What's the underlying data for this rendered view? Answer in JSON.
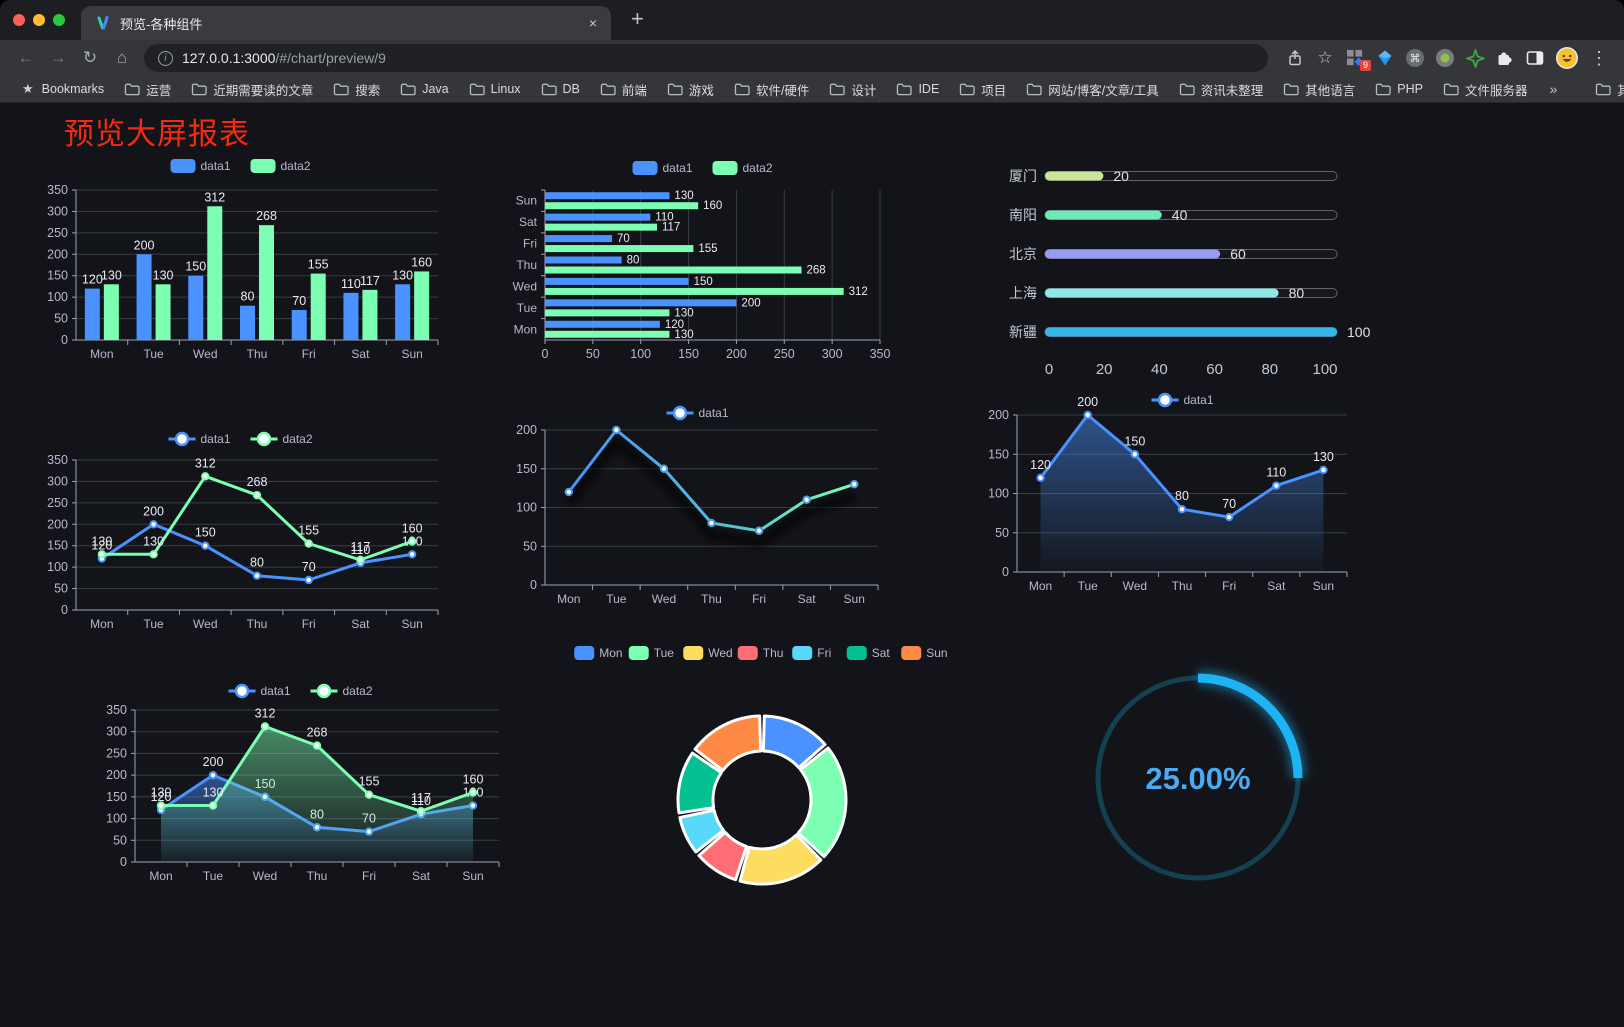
{
  "browser": {
    "tab_title": "预览-各种组件",
    "url_host": "127.0.0.1:3000",
    "url_path": "/#/chart/preview/9",
    "badge": "9",
    "bookmarks_label": "Bookmarks",
    "bookmarks": [
      "运营",
      "近期需要读的文章",
      "搜索",
      "Java",
      "Linux",
      "DB",
      "前端",
      "游戏",
      "软件/硬件",
      "设计",
      "IDE",
      "项目",
      "网站/博客/文章/工具",
      "资讯未整理",
      "其他语言",
      "PHP",
      "文件服务器"
    ],
    "overflow": "»",
    "other_bookmarks": "其他书签",
    "glyphs": {
      "back": "←",
      "forward": "→",
      "reload": "↻",
      "home": "⌂",
      "info": "i",
      "close": "×",
      "new_tab": "+",
      "star": "☆",
      "kebab": "⋮",
      "bookmark_star": "★",
      "cmd": "⌘"
    }
  },
  "page": {
    "title": "预览大屏报表",
    "title_color": "#f42a12",
    "background": "#131419"
  },
  "palette": [
    "#4992ff",
    "#7cffb2",
    "#fddd60",
    "#ff6e76",
    "#58d9f9",
    "#05c091",
    "#ff8a45"
  ],
  "chart_data": [
    {
      "id": "bar-vertical",
      "type": "bar",
      "categories": [
        "Mon",
        "Tue",
        "Wed",
        "Thu",
        "Fri",
        "Sat",
        "Sun"
      ],
      "series": [
        {
          "name": "data1",
          "color": "#4992ff",
          "values": [
            120,
            200,
            150,
            80,
            70,
            110,
            130
          ]
        },
        {
          "name": "data2",
          "color": "#7cffb2",
          "values": [
            130,
            130,
            312,
            268,
            155,
            117,
            160
          ]
        }
      ],
      "ylim": [
        0,
        350
      ],
      "ystep": 50,
      "legend_position": "top",
      "grid": true,
      "value_labels": true
    },
    {
      "id": "bar-horizontal",
      "type": "bar-horizontal",
      "categories": [
        "Mon",
        "Tue",
        "Wed",
        "Thu",
        "Fri",
        "Sat",
        "Sun"
      ],
      "series": [
        {
          "name": "data1",
          "color": "#4992ff",
          "values": [
            120,
            200,
            150,
            80,
            70,
            110,
            130
          ]
        },
        {
          "name": "data2",
          "color": "#7cffb2",
          "values": [
            130,
            130,
            312,
            268,
            155,
            117,
            160
          ]
        }
      ],
      "xlim": [
        0,
        350
      ],
      "xstep": 50,
      "legend_position": "top",
      "grid": true,
      "value_labels": true
    },
    {
      "id": "progress",
      "type": "bar-progress",
      "items": [
        {
          "label": "厦门",
          "value": 20,
          "color": "#c9e69b"
        },
        {
          "label": "南阳",
          "value": 40,
          "color": "#6fe7b8"
        },
        {
          "label": "北京",
          "value": 60,
          "color": "#979cf1"
        },
        {
          "label": "上海",
          "value": 80,
          "color": "#8ee8e5"
        },
        {
          "label": "新疆",
          "value": 100,
          "color": "#37b6e9"
        }
      ],
      "xticks": [
        0,
        20,
        40,
        60,
        80,
        100
      ],
      "xlim": [
        0,
        100
      ]
    },
    {
      "id": "line-two",
      "type": "line",
      "categories": [
        "Mon",
        "Tue",
        "Wed",
        "Thu",
        "Fri",
        "Sat",
        "Sun"
      ],
      "series": [
        {
          "name": "data1",
          "color": "#4992ff",
          "values": [
            120,
            200,
            150,
            80,
            70,
            110,
            130
          ]
        },
        {
          "name": "data2",
          "color": "#7cffb2",
          "values": [
            130,
            130,
            312,
            268,
            155,
            117,
            160
          ]
        }
      ],
      "ylim": [
        0,
        350
      ],
      "ystep": 50,
      "legend_position": "top",
      "value_labels": true
    },
    {
      "id": "line-gradient",
      "type": "line",
      "categories": [
        "Mon",
        "Tue",
        "Wed",
        "Thu",
        "Fri",
        "Sat",
        "Sun"
      ],
      "series": [
        {
          "name": "data1",
          "color": "#4992ff",
          "gradient": [
            "#4992ff",
            "#7cffb2"
          ],
          "values": [
            120,
            200,
            150,
            80,
            70,
            110,
            130
          ],
          "shadow": true
        }
      ],
      "ylim": [
        0,
        200
      ],
      "ystep": 50,
      "legend_position": "top",
      "value_labels": false
    },
    {
      "id": "area-single",
      "type": "area",
      "categories": [
        "Mon",
        "Tue",
        "Wed",
        "Thu",
        "Fri",
        "Sat",
        "Sun"
      ],
      "series": [
        {
          "name": "data1",
          "color": "#4992ff",
          "values": [
            120,
            200,
            150,
            80,
            70,
            110,
            130
          ],
          "area": true
        }
      ],
      "ylim": [
        0,
        200
      ],
      "ystep": 50,
      "legend_position": "top",
      "value_labels": true
    },
    {
      "id": "line-area-two",
      "type": "area",
      "categories": [
        "Mon",
        "Tue",
        "Wed",
        "Thu",
        "Fri",
        "Sat",
        "Sun"
      ],
      "series": [
        {
          "name": "data1",
          "color": "#4992ff",
          "values": [
            120,
            200,
            150,
            80,
            70,
            110,
            130
          ],
          "area": true
        },
        {
          "name": "data2",
          "color": "#7cffb2",
          "values": [
            130,
            130,
            312,
            268,
            155,
            117,
            160
          ],
          "area": true
        }
      ],
      "ylim": [
        0,
        350
      ],
      "ystep": 50,
      "legend_position": "top",
      "value_labels": true
    },
    {
      "id": "pie-donut",
      "type": "pie",
      "categories": [
        "Mon",
        "Tue",
        "Wed",
        "Thu",
        "Fri",
        "Sat",
        "Sun"
      ],
      "values": [
        120,
        200,
        150,
        80,
        70,
        110,
        130
      ],
      "colors": [
        "#4992ff",
        "#7cffb2",
        "#fddd60",
        "#ff6e76",
        "#58d9f9",
        "#05c091",
        "#ff8a45"
      ],
      "legend_position": "top",
      "inner_radius": 49,
      "outer_radius": 84
    },
    {
      "id": "gauge",
      "type": "gauge",
      "value": 25,
      "label": "25.00%",
      "color": "#1db3f5",
      "track_color": "#14404f",
      "text_color": "#4aabf3"
    }
  ]
}
